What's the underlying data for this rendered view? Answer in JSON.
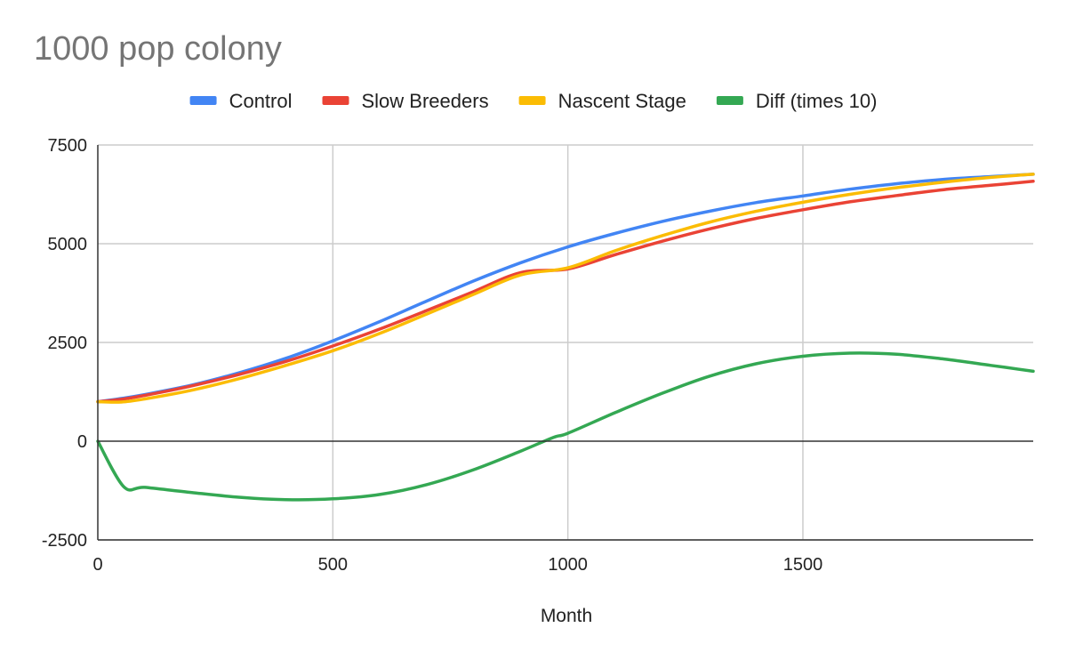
{
  "chart_data": {
    "type": "line",
    "title": "1000 pop colony",
    "xlabel": "Month",
    "ylabel": "",
    "xlim": [
      0,
      1990
    ],
    "ylim": [
      -2500,
      7500
    ],
    "x_ticks": [
      0,
      500,
      1000,
      1500
    ],
    "y_ticks": [
      -2500,
      0,
      2500,
      5000,
      7500
    ],
    "grid": true,
    "legend_position": "top",
    "series": [
      {
        "name": "Control",
        "color": "#4285f4",
        "points": [
          [
            0,
            1000
          ],
          [
            50,
            1080
          ],
          [
            100,
            1180
          ],
          [
            200,
            1420
          ],
          [
            300,
            1730
          ],
          [
            400,
            2100
          ],
          [
            500,
            2540
          ],
          [
            600,
            3030
          ],
          [
            700,
            3550
          ],
          [
            800,
            4060
          ],
          [
            900,
            4520
          ],
          [
            1000,
            4920
          ],
          [
            1100,
            5260
          ],
          [
            1200,
            5560
          ],
          [
            1300,
            5820
          ],
          [
            1400,
            6040
          ],
          [
            1500,
            6210
          ],
          [
            1600,
            6380
          ],
          [
            1700,
            6520
          ],
          [
            1800,
            6630
          ],
          [
            1900,
            6700
          ],
          [
            1990,
            6760
          ]
        ]
      },
      {
        "name": "Slow Breeders",
        "color": "#ea4335",
        "points": [
          [
            0,
            1000
          ],
          [
            50,
            1060
          ],
          [
            100,
            1160
          ],
          [
            200,
            1400
          ],
          [
            300,
            1690
          ],
          [
            400,
            2020
          ],
          [
            500,
            2410
          ],
          [
            600,
            2840
          ],
          [
            700,
            3310
          ],
          [
            800,
            3790
          ],
          [
            900,
            4270
          ],
          [
            1000,
            4360
          ],
          [
            1100,
            4720
          ],
          [
            1200,
            5060
          ],
          [
            1300,
            5370
          ],
          [
            1400,
            5640
          ],
          [
            1500,
            5860
          ],
          [
            1600,
            6060
          ],
          [
            1700,
            6220
          ],
          [
            1800,
            6370
          ],
          [
            1900,
            6480
          ],
          [
            1990,
            6580
          ]
        ]
      },
      {
        "name": "Nascent Stage",
        "color": "#fbbc04",
        "points": [
          [
            0,
            1000
          ],
          [
            50,
            990
          ],
          [
            100,
            1070
          ],
          [
            200,
            1290
          ],
          [
            300,
            1580
          ],
          [
            400,
            1920
          ],
          [
            500,
            2290
          ],
          [
            600,
            2730
          ],
          [
            700,
            3220
          ],
          [
            800,
            3720
          ],
          [
            900,
            4210
          ],
          [
            1000,
            4390
          ],
          [
            1100,
            4820
          ],
          [
            1200,
            5200
          ],
          [
            1300,
            5540
          ],
          [
            1400,
            5820
          ],
          [
            1500,
            6050
          ],
          [
            1600,
            6250
          ],
          [
            1700,
            6420
          ],
          [
            1800,
            6560
          ],
          [
            1900,
            6680
          ],
          [
            1990,
            6760
          ]
        ]
      },
      {
        "name": "Diff (times 10)",
        "color": "#34a853",
        "points": [
          [
            0,
            0
          ],
          [
            55,
            -1150
          ],
          [
            100,
            -1170
          ],
          [
            200,
            -1300
          ],
          [
            300,
            -1420
          ],
          [
            400,
            -1480
          ],
          [
            500,
            -1460
          ],
          [
            600,
            -1350
          ],
          [
            700,
            -1100
          ],
          [
            800,
            -720
          ],
          [
            900,
            -250
          ],
          [
            970,
            100
          ],
          [
            1000,
            200
          ],
          [
            1100,
            720
          ],
          [
            1200,
            1210
          ],
          [
            1300,
            1640
          ],
          [
            1400,
            1960
          ],
          [
            1500,
            2150
          ],
          [
            1600,
            2230
          ],
          [
            1700,
            2200
          ],
          [
            1800,
            2080
          ],
          [
            1900,
            1920
          ],
          [
            1990,
            1770
          ]
        ]
      }
    ]
  }
}
